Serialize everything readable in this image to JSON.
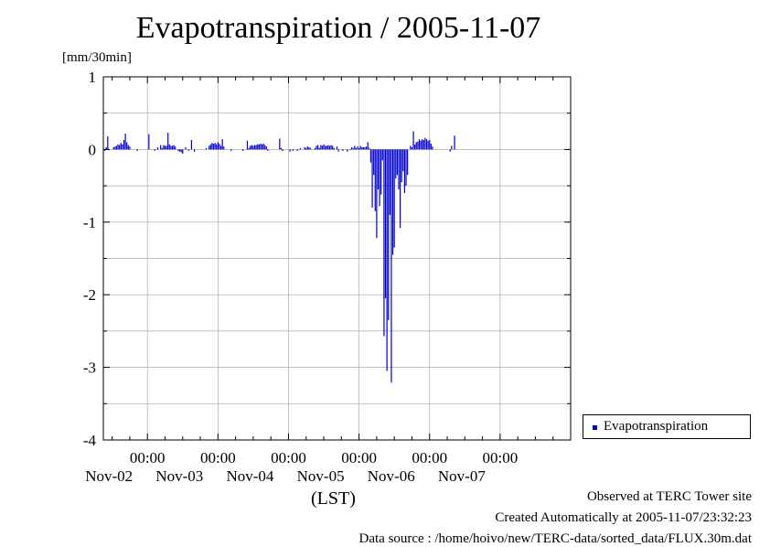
{
  "chart_data": {
    "type": "bar",
    "title": "Evapotranspiration / 2005-11-07",
    "ylabel": "[mm/30min]",
    "xlabel": "(LST)",
    "ylim": [
      -4,
      1
    ],
    "xlim": [
      "2005-11-01 09:00",
      "2005-11-08 00:00"
    ],
    "interval_minutes": 30,
    "y_ticks": [
      "1",
      "0",
      "-1",
      "-2",
      "-3",
      "-4"
    ],
    "x_ticks": [
      {
        "time": "00:00",
        "date": "Nov-02"
      },
      {
        "time": "00:00",
        "date": "Nov-03"
      },
      {
        "time": "00:00",
        "date": "Nov-04"
      },
      {
        "time": "00:00",
        "date": "Nov-05"
      },
      {
        "time": "00:00",
        "date": "Nov-06"
      },
      {
        "time": "00:00",
        "date": "Nov-07"
      }
    ],
    "grid": true,
    "legend_position": "bottom-right",
    "series": [
      {
        "name": "Evapotranspiration",
        "color": "#0000cc",
        "points": [
          [
            "2005-11-01 09:30",
            -0.02
          ],
          [
            "2005-11-01 10:00",
            0.03
          ],
          [
            "2005-11-01 10:30",
            0.18
          ],
          [
            "2005-11-01 12:30",
            0.03
          ],
          [
            "2005-11-01 13:00",
            0.04
          ],
          [
            "2005-11-01 13:30",
            0.05
          ],
          [
            "2005-11-01 14:00",
            0.07
          ],
          [
            "2005-11-01 14:30",
            0.06
          ],
          [
            "2005-11-01 15:00",
            0.09
          ],
          [
            "2005-11-01 15:30",
            0.07
          ],
          [
            "2005-11-01 16:00",
            0.13
          ],
          [
            "2005-11-01 16:30",
            0.22
          ],
          [
            "2005-11-01 17:00",
            0.1
          ],
          [
            "2005-11-01 17:30",
            0.06
          ],
          [
            "2005-11-01 18:00",
            0.04
          ],
          [
            "2005-11-01 20:30",
            -0.02
          ],
          [
            "2005-11-02 00:30",
            0.21
          ],
          [
            "2005-11-02 02:30",
            -0.02
          ],
          [
            "2005-11-02 03:30",
            0.03
          ],
          [
            "2005-11-02 04:30",
            0.06
          ],
          [
            "2005-11-02 05:00",
            0.02
          ],
          [
            "2005-11-02 05:30",
            0.06
          ],
          [
            "2005-11-02 06:00",
            0.05
          ],
          [
            "2005-11-02 06:30",
            0.05
          ],
          [
            "2005-11-02 07:00",
            0.23
          ],
          [
            "2005-11-02 07:30",
            0.07
          ],
          [
            "2005-11-02 08:00",
            0.05
          ],
          [
            "2005-11-02 08:30",
            0.05
          ],
          [
            "2005-11-02 09:00",
            0.06
          ],
          [
            "2005-11-02 09:30",
            0.04
          ],
          [
            "2005-11-02 10:30",
            -0.02
          ],
          [
            "2005-11-02 11:00",
            -0.03
          ],
          [
            "2005-11-02 11:30",
            -0.04
          ],
          [
            "2005-11-02 12:00",
            -0.06
          ],
          [
            "2005-11-02 13:00",
            0.03
          ],
          [
            "2005-11-02 14:00",
            -0.02
          ],
          [
            "2005-11-02 15:00",
            0.13
          ],
          [
            "2005-11-02 16:00",
            -0.03
          ],
          [
            "2005-11-02 20:00",
            0.02
          ],
          [
            "2005-11-02 21:00",
            0.05
          ],
          [
            "2005-11-02 21:30",
            0.07
          ],
          [
            "2005-11-02 22:00",
            0.09
          ],
          [
            "2005-11-02 22:30",
            0.08
          ],
          [
            "2005-11-02 23:00",
            0.09
          ],
          [
            "2005-11-02 23:30",
            0.07
          ],
          [
            "2005-11-03 00:00",
            0.1
          ],
          [
            "2005-11-03 00:30",
            0.08
          ],
          [
            "2005-11-03 01:00",
            0.05
          ],
          [
            "2005-11-03 01:30",
            0.14
          ],
          [
            "2005-11-03 02:00",
            0.04
          ],
          [
            "2005-11-03 04:30",
            -0.02
          ],
          [
            "2005-11-03 08:30",
            -0.02
          ],
          [
            "2005-11-03 10:00",
            0.12
          ],
          [
            "2005-11-03 10:30",
            0.02
          ],
          [
            "2005-11-03 11:00",
            0.05
          ],
          [
            "2005-11-03 11:30",
            0.06
          ],
          [
            "2005-11-03 12:00",
            0.05
          ],
          [
            "2005-11-03 12:30",
            0.06
          ],
          [
            "2005-11-03 13:00",
            0.06
          ],
          [
            "2005-11-03 13:30",
            0.07
          ],
          [
            "2005-11-03 14:00",
            0.07
          ],
          [
            "2005-11-03 14:30",
            0.08
          ],
          [
            "2005-11-03 15:00",
            0.07
          ],
          [
            "2005-11-03 15:30",
            0.08
          ],
          [
            "2005-11-03 16:00",
            0.06
          ],
          [
            "2005-11-03 16:30",
            0.04
          ],
          [
            "2005-11-03 17:00",
            -0.02
          ],
          [
            "2005-11-03 21:00",
            0.15
          ],
          [
            "2005-11-03 21:30",
            0.02
          ],
          [
            "2005-11-03 22:00",
            -0.02
          ],
          [
            "2005-11-04 00:30",
            -0.03
          ],
          [
            "2005-11-04 01:30",
            -0.02
          ],
          [
            "2005-11-04 03:00",
            -0.02
          ],
          [
            "2005-11-04 04:00",
            0.02
          ],
          [
            "2005-11-04 05:30",
            0.03
          ],
          [
            "2005-11-04 06:00",
            0.02
          ],
          [
            "2005-11-04 06:30",
            0.04
          ],
          [
            "2005-11-04 07:00",
            0.03
          ],
          [
            "2005-11-04 07:30",
            0.02
          ],
          [
            "2005-11-04 09:00",
            0.02
          ],
          [
            "2005-11-04 09:30",
            0.05
          ],
          [
            "2005-11-04 10:00",
            0.06
          ],
          [
            "2005-11-04 10:30",
            0.02
          ],
          [
            "2005-11-04 11:00",
            0.06
          ],
          [
            "2005-11-04 11:30",
            0.05
          ],
          [
            "2005-11-04 12:00",
            0.07
          ],
          [
            "2005-11-04 12:30",
            0.05
          ],
          [
            "2005-11-04 13:00",
            0.05
          ],
          [
            "2005-11-04 13:30",
            0.06
          ],
          [
            "2005-11-04 14:00",
            0.05
          ],
          [
            "2005-11-04 14:30",
            0.06
          ],
          [
            "2005-11-04 15:00",
            0.05
          ],
          [
            "2005-11-04 15:30",
            0.02
          ],
          [
            "2005-11-04 16:30",
            0.04
          ],
          [
            "2005-11-04 17:00",
            -0.03
          ],
          [
            "2005-11-04 18:30",
            -0.02
          ],
          [
            "2005-11-04 20:00",
            -0.03
          ],
          [
            "2005-11-04 21:00",
            -0.01
          ],
          [
            "2005-11-04 21:30",
            0.03
          ],
          [
            "2005-11-04 22:00",
            0.02
          ],
          [
            "2005-11-04 22:30",
            0.05
          ],
          [
            "2005-11-04 23:00",
            0.02
          ],
          [
            "2005-11-04 23:30",
            0.04
          ],
          [
            "2005-11-05 00:00",
            0.02
          ],
          [
            "2005-11-05 00:30",
            0.05
          ],
          [
            "2005-11-05 01:00",
            0.03
          ],
          [
            "2005-11-05 01:30",
            0.03
          ],
          [
            "2005-11-05 02:00",
            0.03
          ],
          [
            "2005-11-05 02:30",
            0.04
          ],
          [
            "2005-11-05 03:00",
            0.1
          ],
          [
            "2005-11-05 03:30",
            0.02
          ],
          [
            "2005-11-05 04:00",
            -0.18
          ],
          [
            "2005-11-05 04:30",
            -0.8
          ],
          [
            "2005-11-05 05:00",
            -0.35
          ],
          [
            "2005-11-05 05:30",
            -0.85
          ],
          [
            "2005-11-05 06:00",
            -1.22
          ],
          [
            "2005-11-05 06:30",
            -0.55
          ],
          [
            "2005-11-05 07:00",
            -0.78
          ],
          [
            "2005-11-05 07:30",
            -0.62
          ],
          [
            "2005-11-05 08:00",
            -0.15
          ],
          [
            "2005-11-05 08:30",
            -2.57
          ],
          [
            "2005-11-05 09:00",
            -2.05
          ],
          [
            "2005-11-05 09:30",
            -3.05
          ],
          [
            "2005-11-05 10:00",
            -2.35
          ],
          [
            "2005-11-05 10:30",
            -0.9
          ],
          [
            "2005-11-05 11:00",
            -3.21
          ],
          [
            "2005-11-05 11:30",
            -1.45
          ],
          [
            "2005-11-05 12:00",
            -1.35
          ],
          [
            "2005-11-05 12:30",
            -0.4
          ],
          [
            "2005-11-05 13:00",
            -0.35
          ],
          [
            "2005-11-05 13:30",
            -0.55
          ],
          [
            "2005-11-05 14:00",
            -1.08
          ],
          [
            "2005-11-05 14:30",
            -0.45
          ],
          [
            "2005-11-05 15:00",
            -0.3
          ],
          [
            "2005-11-05 15:30",
            -0.6
          ],
          [
            "2005-11-05 16:00",
            -0.5
          ],
          [
            "2005-11-05 16:30",
            -0.35
          ],
          [
            "2005-11-05 17:30",
            0.05
          ],
          [
            "2005-11-05 18:00",
            0.03
          ],
          [
            "2005-11-05 18:30",
            0.25
          ],
          [
            "2005-11-05 19:00",
            0.07
          ],
          [
            "2005-11-05 19:30",
            0.1
          ],
          [
            "2005-11-05 20:00",
            0.11
          ],
          [
            "2005-11-05 20:30",
            0.14
          ],
          [
            "2005-11-05 21:00",
            0.12
          ],
          [
            "2005-11-05 21:30",
            0.14
          ],
          [
            "2005-11-05 22:00",
            0.13
          ],
          [
            "2005-11-05 22:30",
            0.16
          ],
          [
            "2005-11-05 23:00",
            0.14
          ],
          [
            "2005-11-05 23:30",
            0.12
          ],
          [
            "2005-11-06 00:00",
            0.13
          ],
          [
            "2005-11-06 00:30",
            0.08
          ],
          [
            "2005-11-06 01:00",
            0.04
          ],
          [
            "2005-11-06 07:00",
            -0.03
          ],
          [
            "2005-11-06 07:30",
            0.05
          ],
          [
            "2005-11-06 08:30",
            0.19
          ]
        ]
      }
    ]
  },
  "legend": {
    "label": "Evapotranspiration",
    "color": "#0000cc"
  },
  "footer": {
    "line1": "Observed at TERC Tower site",
    "line2": "Created Automatically at 2005-11-07/23:32:23",
    "line3": "Data source : /home/hoivo/new/TERC-data/sorted_data/FLUX.30m.dat"
  }
}
